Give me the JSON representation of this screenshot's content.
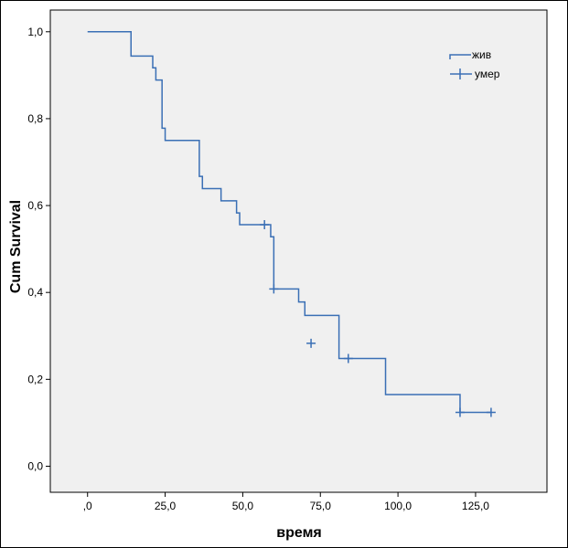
{
  "chart_data": {
    "type": "line",
    "title": "",
    "xlabel": "время",
    "ylabel": "Cum Survival",
    "xlim": [
      -12,
      148
    ],
    "ylim": [
      -0.06,
      1.05
    ],
    "x_ticks": [
      0,
      25,
      50,
      75,
      100,
      125
    ],
    "x_tick_labels": [
      ",0",
      "25,0",
      "50,0",
      "75,0",
      "100,0",
      "125,0"
    ],
    "y_ticks": [
      0,
      0.2,
      0.4,
      0.6,
      0.8,
      1.0
    ],
    "y_tick_labels": [
      "0,0",
      "0,2",
      "0,4",
      "0,6",
      "0,8",
      "1,0"
    ],
    "grid": false,
    "legend": {
      "placement": "top-right",
      "entries": [
        {
          "label": "жив",
          "marker": "step-line"
        },
        {
          "label": "умер",
          "marker": "plus"
        }
      ]
    },
    "series": [
      {
        "name": "жив",
        "step": true,
        "x": [
          0,
          14,
          21,
          22,
          24,
          25,
          36,
          37,
          43,
          48,
          49,
          59,
          60,
          68,
          70,
          81,
          96,
          120
        ],
        "y": [
          1.0,
          0.944,
          0.917,
          0.889,
          0.778,
          0.75,
          0.667,
          0.639,
          0.611,
          0.583,
          0.556,
          0.528,
          0.408,
          0.378,
          0.347,
          0.248,
          0.165,
          0.124
        ],
        "end_x": 130
      },
      {
        "name": "умер",
        "type": "censored",
        "x": [
          57,
          60,
          72,
          84,
          120,
          130
        ],
        "y": [
          0.556,
          0.408,
          0.283,
          0.248,
          0.124,
          0.124
        ]
      }
    ],
    "colors": {
      "line": "#3a6fb5",
      "plot_background": "#f0f0f0"
    }
  }
}
